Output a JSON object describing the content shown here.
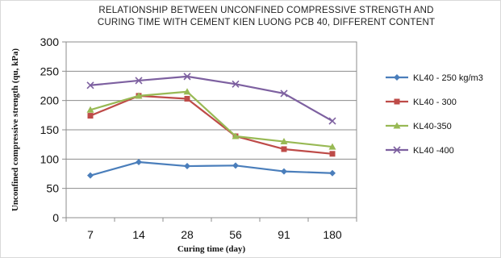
{
  "chart_data": {
    "type": "line",
    "title_lines": [
      "RELATIONSHIP  BETWEEN UNCONFINED COMPRESSIVE STRENGTH AND",
      "CURING TIME  WITH CEMENT KIEN LUONG PCB 40, DIFFERENT CONTENT"
    ],
    "xlabel": "Curing time (day)",
    "ylabel": "Unconfined compressive strength (qu, kPa)",
    "categories": [
      "7",
      "14",
      "28",
      "56",
      "91",
      "180"
    ],
    "ylim": [
      0,
      300
    ],
    "yticks": [
      0,
      50,
      100,
      150,
      200,
      250,
      300
    ],
    "grid": true,
    "legend_position": "right",
    "series": [
      {
        "name": "KL40 - 250 kg/m3",
        "color": "#4a7ebb",
        "marker": "diamond",
        "values": [
          72,
          95,
          88,
          89,
          79,
          76
        ]
      },
      {
        "name": "KL40 - 300",
        "color": "#be4b48",
        "marker": "square",
        "values": [
          174,
          208,
          203,
          139,
          117,
          109
        ]
      },
      {
        "name": "KL40-350",
        "color": "#98b954",
        "marker": "triangle",
        "values": [
          184,
          208,
          215,
          139,
          130,
          121
        ]
      },
      {
        "name": "KL40 -400",
        "color": "#7d60a0",
        "marker": "x",
        "values": [
          226,
          234,
          241,
          228,
          212,
          165
        ]
      }
    ]
  }
}
